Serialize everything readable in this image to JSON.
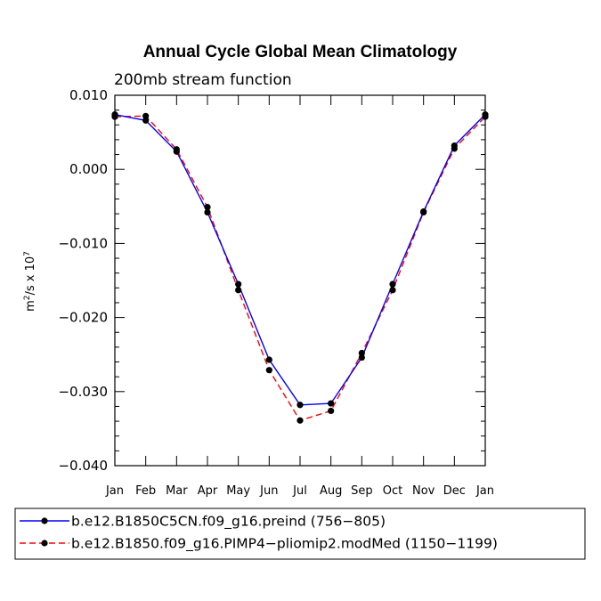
{
  "chart_data": {
    "type": "line",
    "title": "Annual Cycle Global Mean Climatology",
    "subtitle": "200mb stream function",
    "ylabel": "m²/s x 10⁷",
    "ylabel_base": "m",
    "ylabel_sup1": "2",
    "ylabel_mid": "/s x 10",
    "ylabel_sup2": "7",
    "xlabel": "",
    "categories": [
      "Jan",
      "Feb",
      "Mar",
      "Apr",
      "May",
      "Jun",
      "Jul",
      "Aug",
      "Sep",
      "Oct",
      "Nov",
      "Dec",
      "Jan"
    ],
    "ylim": [
      -0.04,
      0.01
    ],
    "yticks": [
      -0.04,
      -0.03,
      -0.02,
      -0.01,
      0.0,
      0.01
    ],
    "ytick_labels": [
      "−0.040",
      "−0.030",
      "−0.020",
      "−0.010",
      "0.000",
      "0.010"
    ],
    "series": [
      {
        "name": "b.e12.B1850C5CN.f09_g16.preind (756−805)",
        "color": "#0000ff",
        "dash": "solid",
        "values": [
          0.0074,
          0.0066,
          0.0024,
          -0.0058,
          -0.0155,
          -0.0257,
          -0.0318,
          -0.0316,
          -0.0254,
          -0.0155,
          -0.0057,
          0.0032,
          0.0074
        ]
      },
      {
        "name": "b.e12.B1850.f09_g16.PIMP4−pliomip2.modMed (1150−1199)",
        "color": "#ff0000",
        "dash": "dashed",
        "values": [
          0.0071,
          0.0072,
          0.0027,
          -0.0051,
          -0.0163,
          -0.0271,
          -0.0339,
          -0.0326,
          -0.0248,
          -0.0163,
          -0.0058,
          0.0028,
          0.0071
        ]
      }
    ],
    "legend_position": "bottom"
  }
}
